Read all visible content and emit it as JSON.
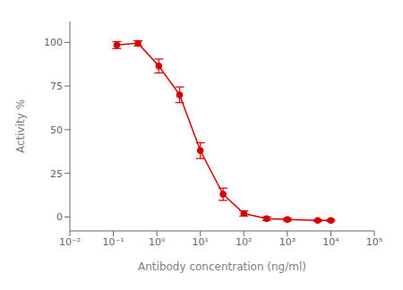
{
  "chart_data": {
    "type": "line",
    "x": [
      0.12,
      0.37,
      1.11,
      3.33,
      10.0,
      33.3,
      100.0,
      333.0,
      1000.0,
      5000.0,
      10000.0
    ],
    "values": [
      98.5,
      99.5,
      86.5,
      70.0,
      38.0,
      13.0,
      2.0,
      -1.0,
      -1.5,
      -2.0,
      -2.0
    ],
    "yerr": [
      2.0,
      1.5,
      4.0,
      4.5,
      4.5,
      3.5,
      1.5,
      1.0,
      0.8,
      0.5,
      0.5
    ],
    "color": "#d40000",
    "marker": "o",
    "xlabel": "Antibody concentration (ng/ml)",
    "ylabel": "Activity %",
    "log": "x",
    "xlim": [
      0.01,
      100000
    ],
    "ylim": [
      -8,
      112
    ],
    "xticks": [
      {
        "value": 0.01,
        "label": "10⁻²"
      },
      {
        "value": 0.1,
        "label": "10⁻¹"
      },
      {
        "value": 1,
        "label": "10⁰"
      },
      {
        "value": 10,
        "label": "10¹"
      },
      {
        "value": 100,
        "label": "10²"
      },
      {
        "value": 1000,
        "label": "10³"
      },
      {
        "value": 10000,
        "label": "10⁴"
      },
      {
        "value": 100000,
        "label": "10⁵"
      }
    ],
    "yticks": [
      0,
      25,
      50,
      75,
      100
    ],
    "grid": false
  }
}
